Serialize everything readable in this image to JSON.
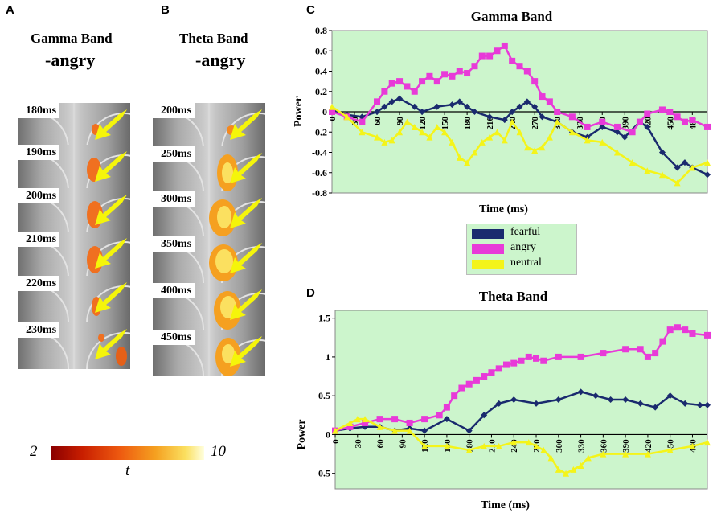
{
  "panels": {
    "A": {
      "letter": "A",
      "title": "Gamma Band",
      "subtitle": "-angry",
      "slice_labels": [
        "180ms",
        "190ms",
        "200ms",
        "210ms",
        "220ms",
        "230ms"
      ]
    },
    "B": {
      "letter": "B",
      "title": "Theta  Band",
      "subtitle": "-angry",
      "slice_labels": [
        "200ms",
        "250ms",
        "300ms",
        "350ms",
        "400ms",
        "450ms"
      ]
    },
    "C": {
      "letter": "C"
    },
    "D": {
      "letter": "D"
    }
  },
  "colorbar": {
    "min_label": "2",
    "max_label": "10",
    "var_label": "t"
  },
  "legend": {
    "items": [
      {
        "label": "fearful",
        "color": "#1a2a6e"
      },
      {
        "label": "angry",
        "color": "#e83ad8"
      },
      {
        "label": "neutral",
        "color": "#f4f41a"
      }
    ]
  },
  "chart_data": [
    {
      "type": "line",
      "title": "Gamma Band",
      "xlabel": "Time (ms)",
      "ylabel": "Power",
      "xlim": [
        0,
        500
      ],
      "ylim": [
        -0.8,
        0.8
      ],
      "yticks": [
        "0.8",
        "0.6",
        "0.4",
        "0.2",
        "0",
        "-0.2",
        "-0.4",
        "-0.6",
        "-0.8"
      ],
      "ytick_values": [
        0.8,
        0.6,
        0.4,
        0.2,
        0,
        -0.2,
        -0.4,
        -0.6,
        -0.8
      ],
      "xticks": [
        "0",
        "30",
        "60",
        "90",
        "120",
        "150",
        "180",
        "210",
        "240",
        "270",
        "300",
        "330",
        "360",
        "390",
        "420",
        "450",
        "480"
      ],
      "xtick_values": [
        0,
        30,
        60,
        90,
        120,
        150,
        180,
        210,
        240,
        270,
        300,
        330,
        360,
        390,
        420,
        450,
        480
      ],
      "series": [
        {
          "name": "fearful",
          "color": "#1a2a6e",
          "marker": "diamond",
          "x": [
            0,
            20,
            40,
            60,
            70,
            80,
            90,
            110,
            120,
            140,
            160,
            170,
            180,
            190,
            210,
            230,
            240,
            250,
            260,
            270,
            280,
            300,
            320,
            340,
            360,
            380,
            390,
            410,
            420,
            440,
            460,
            470,
            480,
            500
          ],
          "y": [
            0.02,
            -0.03,
            -0.05,
            0.0,
            0.05,
            0.1,
            0.13,
            0.05,
            0.0,
            0.05,
            0.07,
            0.1,
            0.05,
            0.0,
            -0.05,
            -0.08,
            0.0,
            0.05,
            0.1,
            0.05,
            -0.05,
            -0.1,
            -0.2,
            -0.25,
            -0.15,
            -0.2,
            -0.25,
            -0.1,
            -0.15,
            -0.4,
            -0.55,
            -0.5,
            -0.55,
            -0.62
          ]
        },
        {
          "name": "angry",
          "color": "#e83ad8",
          "marker": "square",
          "x": [
            0,
            20,
            40,
            60,
            70,
            80,
            90,
            100,
            110,
            120,
            130,
            140,
            150,
            160,
            170,
            180,
            190,
            200,
            210,
            220,
            230,
            240,
            250,
            260,
            270,
            280,
            290,
            300,
            320,
            340,
            360,
            380,
            400,
            410,
            420,
            440,
            450,
            460,
            470,
            480,
            500
          ],
          "y": [
            0.0,
            -0.05,
            -0.1,
            0.1,
            0.2,
            0.28,
            0.3,
            0.25,
            0.2,
            0.3,
            0.35,
            0.3,
            0.37,
            0.35,
            0.4,
            0.38,
            0.45,
            0.55,
            0.55,
            0.6,
            0.65,
            0.5,
            0.45,
            0.4,
            0.3,
            0.15,
            0.1,
            0.0,
            -0.05,
            -0.15,
            -0.1,
            -0.15,
            -0.2,
            -0.1,
            -0.02,
            0.02,
            0.0,
            -0.05,
            -0.1,
            -0.08,
            -0.15
          ]
        },
        {
          "name": "neutral",
          "color": "#f4f41a",
          "marker": "triangle",
          "x": [
            0,
            20,
            40,
            60,
            70,
            80,
            90,
            100,
            110,
            120,
            130,
            140,
            150,
            160,
            170,
            180,
            190,
            200,
            210,
            220,
            230,
            240,
            250,
            260,
            270,
            280,
            290,
            300,
            320,
            340,
            360,
            380,
            400,
            420,
            440,
            460,
            480,
            500
          ],
          "y": [
            0.05,
            -0.05,
            -0.2,
            -0.25,
            -0.3,
            -0.28,
            -0.2,
            -0.1,
            -0.15,
            -0.2,
            -0.25,
            -0.15,
            -0.2,
            -0.3,
            -0.45,
            -0.5,
            -0.4,
            -0.3,
            -0.25,
            -0.2,
            -0.28,
            -0.1,
            -0.2,
            -0.35,
            -0.38,
            -0.35,
            -0.25,
            -0.1,
            -0.2,
            -0.28,
            -0.3,
            -0.4,
            -0.5,
            -0.58,
            -0.62,
            -0.7,
            -0.55,
            -0.5
          ]
        }
      ]
    },
    {
      "type": "line",
      "title": "Theta  Band",
      "xlabel": "Time (ms)",
      "ylabel": "Power",
      "xlim": [
        0,
        500
      ],
      "ylim": [
        -0.7,
        1.6
      ],
      "yticks": [
        "1.5",
        "1",
        "0.5",
        "0",
        "-0.5"
      ],
      "ytick_values": [
        1.5,
        1,
        0.5,
        0,
        -0.5
      ],
      "xticks": [
        "0",
        "30",
        "60",
        "90",
        "120",
        "150",
        "180",
        "210",
        "240",
        "270",
        "300",
        "330",
        "360",
        "390",
        "420",
        "450",
        "480"
      ],
      "xtick_values": [
        0,
        30,
        60,
        90,
        120,
        150,
        180,
        210,
        240,
        270,
        300,
        330,
        360,
        390,
        420,
        450,
        480
      ],
      "series": [
        {
          "name": "fearful",
          "color": "#1a2a6e",
          "marker": "diamond",
          "x": [
            0,
            20,
            40,
            60,
            80,
            100,
            120,
            150,
            180,
            200,
            220,
            240,
            270,
            300,
            330,
            350,
            370,
            390,
            410,
            430,
            450,
            470,
            490,
            500
          ],
          "y": [
            0.05,
            0.08,
            0.1,
            0.1,
            0.05,
            0.08,
            0.05,
            0.2,
            0.05,
            0.25,
            0.4,
            0.45,
            0.4,
            0.45,
            0.55,
            0.5,
            0.45,
            0.45,
            0.4,
            0.35,
            0.5,
            0.4,
            0.38,
            0.38
          ]
        },
        {
          "name": "angry",
          "color": "#e83ad8",
          "marker": "square",
          "x": [
            0,
            20,
            40,
            60,
            80,
            100,
            120,
            140,
            150,
            160,
            170,
            180,
            190,
            200,
            210,
            220,
            230,
            240,
            250,
            260,
            270,
            280,
            300,
            330,
            360,
            390,
            410,
            420,
            430,
            440,
            450,
            460,
            470,
            480,
            500
          ],
          "y": [
            0.05,
            0.1,
            0.15,
            0.2,
            0.2,
            0.15,
            0.2,
            0.25,
            0.35,
            0.5,
            0.6,
            0.65,
            0.7,
            0.75,
            0.8,
            0.85,
            0.9,
            0.92,
            0.95,
            1.0,
            0.98,
            0.95,
            1.0,
            1.0,
            1.05,
            1.1,
            1.1,
            1.0,
            1.05,
            1.2,
            1.35,
            1.38,
            1.35,
            1.3,
            1.28
          ]
        },
        {
          "name": "neutral",
          "color": "#f4f41a",
          "marker": "triangle",
          "x": [
            0,
            20,
            30,
            40,
            60,
            80,
            100,
            120,
            150,
            180,
            200,
            220,
            240,
            260,
            270,
            280,
            290,
            300,
            310,
            320,
            330,
            340,
            360,
            390,
            420,
            450,
            480,
            500
          ],
          "y": [
            0.05,
            0.15,
            0.2,
            0.2,
            0.1,
            0.05,
            0.05,
            -0.15,
            -0.15,
            -0.2,
            -0.15,
            -0.15,
            -0.1,
            -0.1,
            -0.15,
            -0.2,
            -0.3,
            -0.45,
            -0.5,
            -0.45,
            -0.4,
            -0.3,
            -0.25,
            -0.25,
            -0.25,
            -0.2,
            -0.15,
            -0.1
          ]
        }
      ]
    }
  ]
}
